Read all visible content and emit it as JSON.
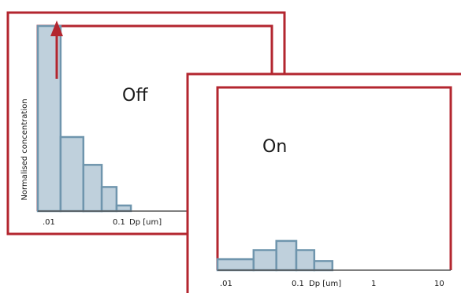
{
  "colors": {
    "frame": "#b3262f",
    "bar_fill": "#bfd0dc",
    "bar_stroke": "#6f95ad",
    "axis": "#555555",
    "text": "#1a1a1a"
  },
  "chart_data": [
    {
      "type": "bar",
      "title": "Off",
      "ylabel": "Normalised concentration",
      "xlabel": "Dp [um]",
      "x_scale": "log",
      "xlim": [
        0.01,
        1
      ],
      "x_tick_labels": [
        ".01",
        "0.1"
      ],
      "bins": [
        {
          "x0": 0.01,
          "x1": 0.02,
          "value": 1.0
        },
        {
          "x0": 0.02,
          "x1": 0.04,
          "value": 0.4
        },
        {
          "x0": 0.04,
          "x1": 0.07,
          "value": 0.25
        },
        {
          "x0": 0.07,
          "x1": 0.11,
          "value": 0.13
        },
        {
          "x0": 0.11,
          "x1": 0.17,
          "value": 0.03
        }
      ],
      "annotation": "upward arrow on first bin",
      "ylim": [
        0,
        1
      ]
    },
    {
      "type": "bar",
      "title": "On",
      "xlabel": "Dp [um]",
      "x_scale": "log",
      "xlim": [
        0.01,
        10
      ],
      "x_tick_labels": [
        ".01",
        "0.1",
        "1",
        "10"
      ],
      "bins": [
        {
          "x0": 0.01,
          "x1": 0.03,
          "value": 0.06
        },
        {
          "x0": 0.03,
          "x1": 0.06,
          "value": 0.11
        },
        {
          "x0": 0.06,
          "x1": 0.11,
          "value": 0.16
        },
        {
          "x0": 0.11,
          "x1": 0.19,
          "value": 0.11
        },
        {
          "x0": 0.19,
          "x1": 0.33,
          "value": 0.05
        }
      ],
      "ylim": [
        0,
        1
      ]
    }
  ]
}
